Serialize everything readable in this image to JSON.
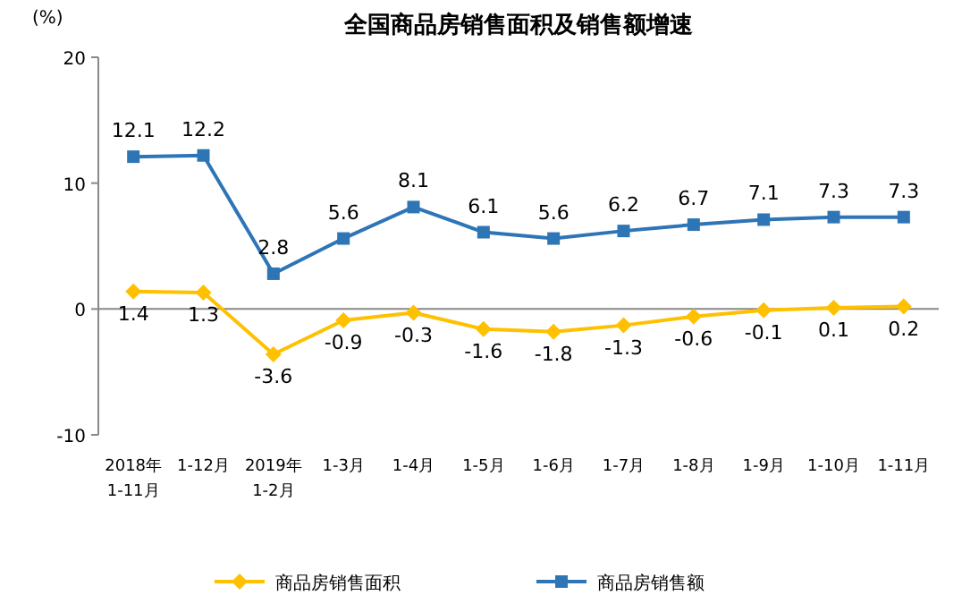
{
  "chart_data": {
    "type": "line",
    "title": "全国商品房销售面积及销售额增速",
    "ylabel": "(%)",
    "categories": [
      "2018年\n1-11月",
      "1-12月",
      "2019年\n1-2月",
      "1-3月",
      "1-4月",
      "1-5月",
      "1-6月",
      "1-7月",
      "1-8月",
      "1-9月",
      "1-10月",
      "1-11月"
    ],
    "series": [
      {
        "name": "商品房销售面积",
        "color": "#ffc000",
        "marker": "diamond",
        "values": [
          1.4,
          1.3,
          -3.6,
          -0.9,
          -0.3,
          -1.6,
          -1.8,
          -1.3,
          -0.6,
          -0.1,
          0.1,
          0.2
        ]
      },
      {
        "name": "商品房销售额",
        "color": "#2e75b6",
        "marker": "square",
        "values": [
          12.1,
          12.2,
          2.8,
          5.6,
          8.1,
          6.1,
          5.6,
          6.2,
          6.7,
          7.1,
          7.3,
          7.3
        ]
      }
    ],
    "ylim": [
      -10,
      20
    ],
    "yticks": [
      -10,
      0,
      10,
      20
    ],
    "data_labels": true,
    "legend": "bottom",
    "line_style": "solid"
  }
}
